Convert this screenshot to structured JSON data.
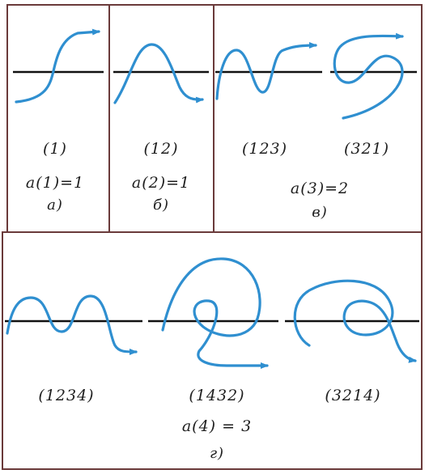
{
  "panels": {
    "p1": {
      "perm": "(1)",
      "count": "a(1)=1",
      "letter": "a)"
    },
    "p2": {
      "perm": "(12)",
      "count": "a(2)=1",
      "letter": "б)"
    },
    "p3": {
      "perm_a": "(123)",
      "perm_b": "(321)",
      "count": "a(3)=2",
      "letter": "в)"
    },
    "p4": {
      "perm_a": "(1234)",
      "perm_b": "(1432)",
      "perm_c": "(3214)",
      "count": "a(4) = 3",
      "letter": "г)"
    }
  },
  "colors": {
    "curve": "#2f8fd0",
    "line": "#111111",
    "border": "#6a3a3a"
  }
}
